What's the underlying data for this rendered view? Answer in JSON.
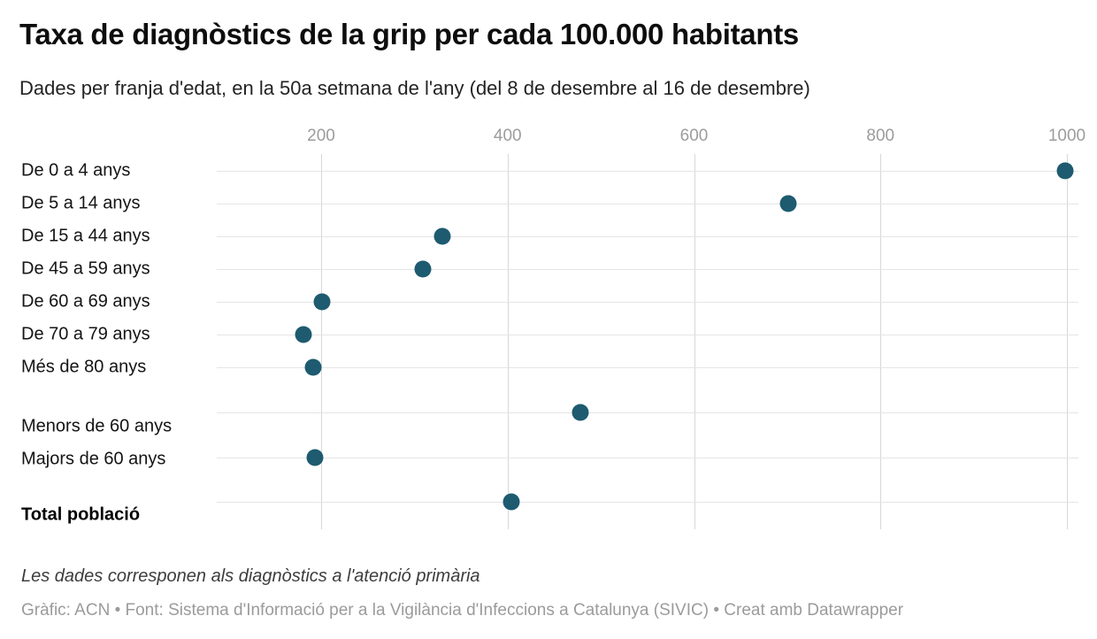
{
  "header": {
    "title": "Taxa de diagnòstics de la grip per cada 100.000 habitants",
    "subtitle": "Dades per franja d'edat, en la 50a setmana de l'any (del 8 de desembre al 16 de desembre)"
  },
  "chart_data": {
    "type": "scatter",
    "variant": "horizontal-dot-plot",
    "title": "Taxa de diagnòstics de la grip per cada 100.000 habitants",
    "subtitle": "Dades per franja d'edat, en la 50a setmana de l'any (del 8 de desembre al 16 de desembre)",
    "xlabel": "",
    "ylabel": "",
    "x_ticks": [
      200,
      400,
      600,
      800,
      1000
    ],
    "xlim": [
      88,
      1012
    ],
    "grid": true,
    "legend": "none",
    "dot_color": "#1e5b70",
    "categories": [
      "De 0 a 4 anys",
      "De 5 a 14 anys",
      "De 15 a 44 anys",
      "De 45 a 59 anys",
      "De 60 a 69 anys",
      "De 70 a 79 anys",
      "Més de 80 anys",
      "Menors de 60 anys",
      "Majors de 60 anys",
      "Total població"
    ],
    "values": [
      998,
      701,
      330,
      309,
      201,
      181,
      191,
      478,
      193,
      404
    ],
    "bold_category": "Total població",
    "row_groups": [
      [
        0,
        1,
        2,
        3,
        4,
        5,
        6
      ],
      [
        7,
        8
      ],
      [
        9
      ]
    ]
  },
  "footer": {
    "note": "Les dades corresponen als diagnòstics a l'atenció primària",
    "byline": "Gràfic: ACN • Font: Sistema d'Informació per a la Vigilància d'Infeccions a Catalunya (SIVIC) • Creat amb Datawrapper"
  }
}
